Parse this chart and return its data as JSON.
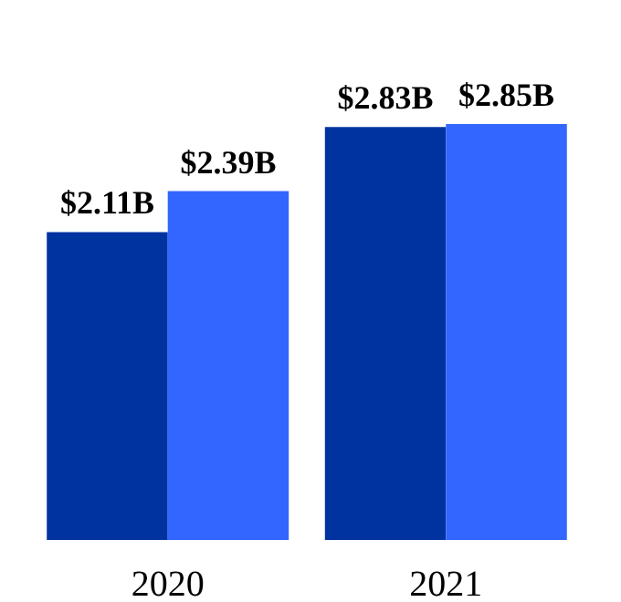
{
  "chart_data": {
    "type": "bar",
    "categories": [
      "2020",
      "2021"
    ],
    "series": [
      {
        "color": "#0033a0",
        "values": [
          2.11,
          2.83
        ],
        "value_labels": [
          "$2.11B",
          "$2.83B"
        ]
      },
      {
        "color": "#3366ff",
        "values": [
          2.39,
          2.85
        ],
        "value_labels": [
          "$2.39B",
          "$2.85B"
        ]
      }
    ]
  }
}
